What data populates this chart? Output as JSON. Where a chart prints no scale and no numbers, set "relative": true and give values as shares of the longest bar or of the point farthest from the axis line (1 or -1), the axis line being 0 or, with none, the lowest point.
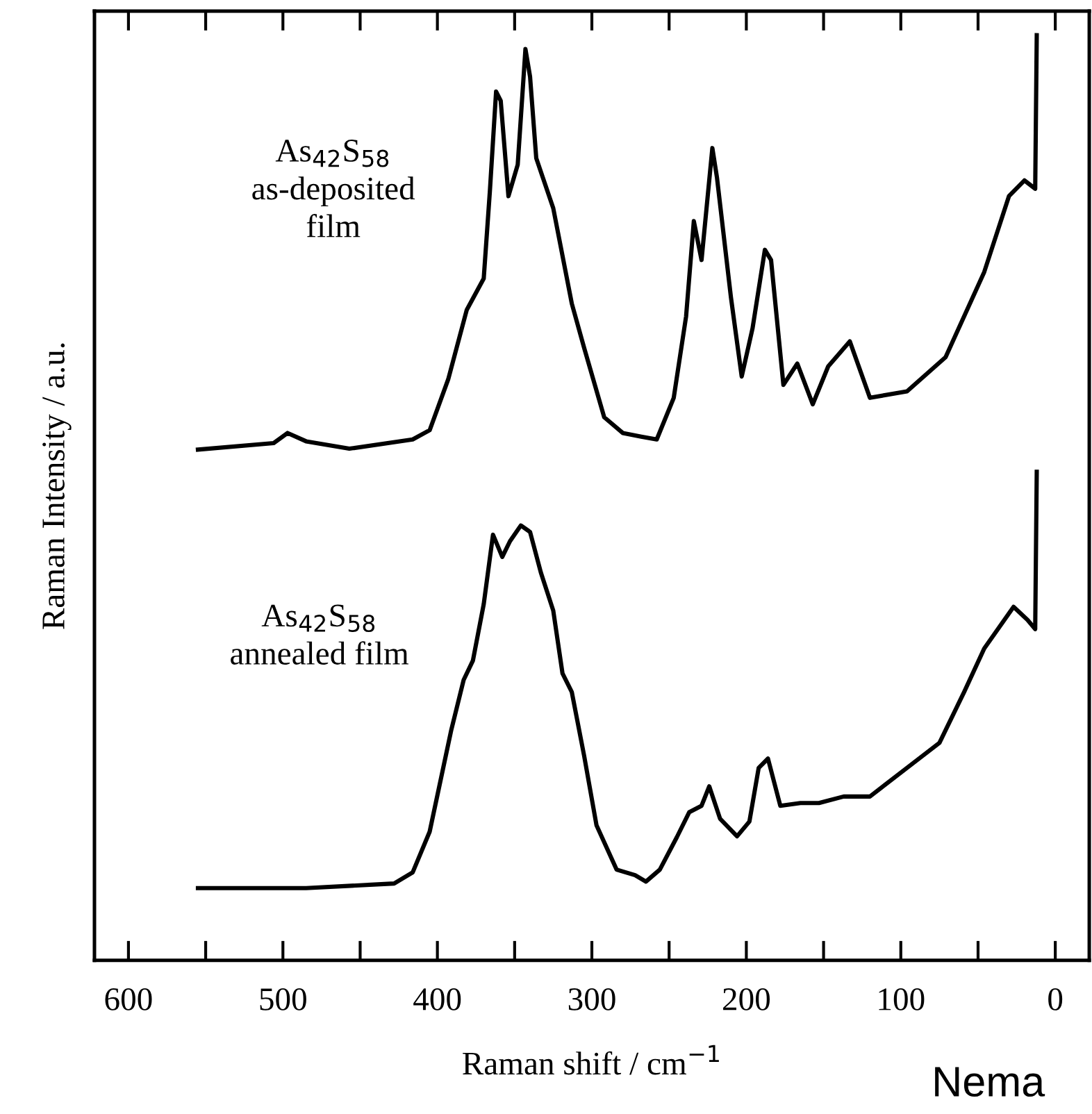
{
  "chart_data": {
    "type": "line",
    "relative": true,
    "xlabel": "Raman shift / cm$^{−1}$",
    "ylabel": "Raman Intensity / a.u.",
    "xlim": [
      622,
      -22
    ],
    "xticks": [
      600,
      {
        "value": 550,
        "label": null
      },
      500,
      {
        "value": 450,
        "label": null
      },
      400,
      {
        "value": 350,
        "label": null
      },
      300,
      {
        "value": 250,
        "label": null
      },
      200,
      {
        "value": 150,
        "label": null
      },
      100,
      {
        "value": 50,
        "label": null
      },
      0
    ],
    "grid": false,
    "legend": false,
    "marker": "none",
    "line_style": "solid",
    "annotations": [
      "Nema"
    ],
    "series": [
      {
        "name": "As$_{42}$S$_{58}$\nas-deposited\nfilm",
        "color": "#000000",
        "x": [
          555,
          506,
          497,
          485,
          457,
          416,
          405,
          393,
          381,
          370,
          366,
          362,
          359,
          354,
          348,
          343,
          340,
          336,
          325,
          313,
          305,
          292,
          280,
          268,
          258,
          247,
          239,
          234,
          229,
          222,
          219,
          210,
          203,
          196,
          188,
          184,
          176,
          167,
          157,
          147,
          133,
          120,
          96,
          71,
          46,
          30,
          20,
          13,
          12
        ],
        "values": [
          0.552,
          0.559,
          0.57,
          0.561,
          0.553,
          0.563,
          0.573,
          0.628,
          0.703,
          0.737,
          0.832,
          0.939,
          0.929,
          0.826,
          0.86,
          0.985,
          0.955,
          0.867,
          0.813,
          0.71,
          0.662,
          0.587,
          0.57,
          0.566,
          0.563,
          0.608,
          0.696,
          0.799,
          0.757,
          0.878,
          0.846,
          0.717,
          0.631,
          0.683,
          0.768,
          0.757,
          0.622,
          0.645,
          0.601,
          0.642,
          0.669,
          0.608,
          0.615,
          0.652,
          0.744,
          0.826,
          0.843,
          0.834,
          1.0
        ]
      },
      {
        "name": "As$_{42}$S$_{58}$\nannealed film",
        "color": "#000000",
        "x": [
          555,
          485,
          428,
          416,
          405,
          391,
          383,
          377,
          370,
          364,
          358,
          353,
          346,
          340,
          333,
          325,
          319,
          313,
          305,
          297,
          284,
          272,
          265,
          256,
          245,
          237,
          229,
          224,
          217,
          206,
          198,
          192,
          186,
          178,
          165,
          153,
          137,
          120,
          96,
          75,
          59,
          46,
          27,
          18,
          13,
          12
        ],
        "values": [
          0.078,
          0.078,
          0.083,
          0.095,
          0.139,
          0.249,
          0.303,
          0.324,
          0.385,
          0.46,
          0.436,
          0.453,
          0.47,
          0.463,
          0.419,
          0.378,
          0.31,
          0.29,
          0.221,
          0.146,
          0.098,
          0.092,
          0.085,
          0.098,
          0.133,
          0.16,
          0.167,
          0.188,
          0.153,
          0.134,
          0.15,
          0.208,
          0.218,
          0.167,
          0.17,
          0.17,
          0.177,
          0.177,
          0.208,
          0.235,
          0.29,
          0.337,
          0.382,
          0.368,
          0.358,
          0.528
        ]
      }
    ]
  }
}
